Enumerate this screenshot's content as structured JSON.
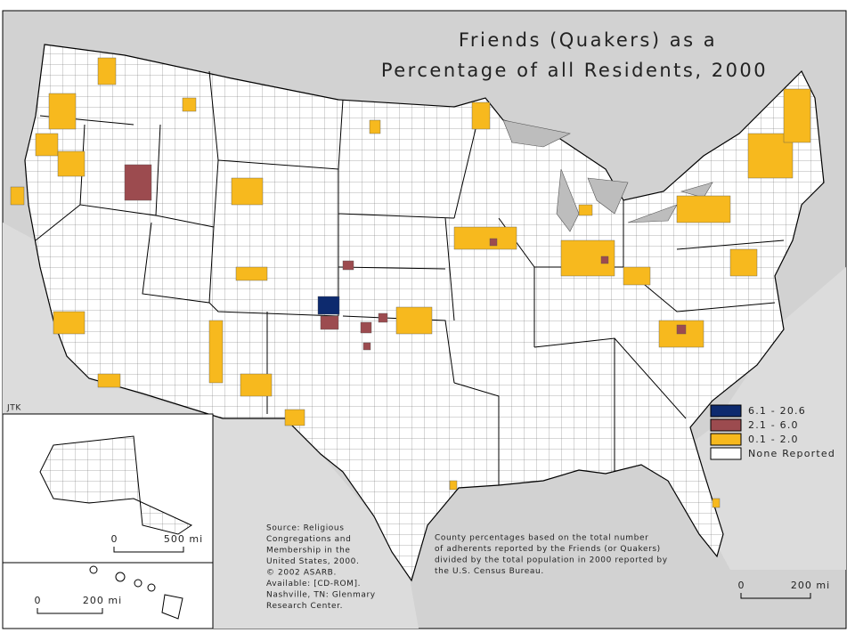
{
  "title": [
    "Friends (Quakers) as a",
    "Percentage of all Residents, 2000"
  ],
  "credit": "JTK",
  "legend": [
    {
      "label": "6.1 - 20.6",
      "color": "#0d2a6e"
    },
    {
      "label": "2.1 - 6.0",
      "color": "#9c4b4f"
    },
    {
      "label": "0.1 - 2.0",
      "color": "#f7b91e"
    },
    {
      "label": "None Reported",
      "color": "#ffffff"
    }
  ],
  "source": [
    "Source: Religious",
    "Congregations and",
    "Membership in the",
    "United States, 2000.",
    "© 2002 ASARB.",
    "Available: [CD-ROM].",
    "Nashville, TN: Glenmary",
    "Research Center."
  ],
  "note": [
    "County percentages based on the total number",
    "of adherents reported by the Friends (or Quakers)",
    "divided by the total population in 2000 reported by",
    "the U.S. Census Bureau."
  ],
  "scale_bars": [
    {
      "start": "0",
      "end": "500 mi"
    },
    {
      "start": "0",
      "end": "200 mi"
    },
    {
      "start": "0",
      "end": "200 mi"
    }
  ]
}
